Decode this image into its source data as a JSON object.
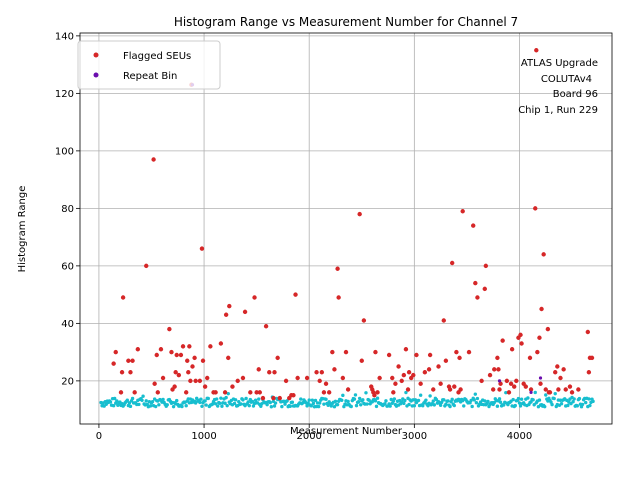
{
  "chart_data": {
    "type": "scatter",
    "title": "Histogram Range vs Measurement Number for Channel 7",
    "xlabel": "Measurement Number",
    "ylabel": "Histogram Range",
    "xlim": [
      -180,
      4880
    ],
    "ylim": [
      5,
      141
    ],
    "xticks": [
      0,
      1000,
      2000,
      3000,
      4000
    ],
    "yticks": [
      20,
      40,
      60,
      80,
      100,
      120,
      140
    ],
    "grid": true,
    "legend_position": "upper left",
    "colors": {
      "baseline": "#17becf",
      "flagged": "#d62728",
      "repeat": "#6a0dad"
    },
    "annotation": [
      "ATLAS Upgrade",
      "COLUTAv4",
      "Board 96",
      "Chip 1, Run 229"
    ],
    "series": [
      {
        "name": "Flagged SEUs",
        "points": [
          [
            140,
            26
          ],
          [
            160,
            30
          ],
          [
            210,
            16
          ],
          [
            220,
            23
          ],
          [
            230,
            49
          ],
          [
            280,
            27
          ],
          [
            300,
            23
          ],
          [
            320,
            27
          ],
          [
            340,
            16
          ],
          [
            370,
            31
          ],
          [
            450,
            60
          ],
          [
            520,
            97
          ],
          [
            530,
            19
          ],
          [
            550,
            29
          ],
          [
            560,
            16
          ],
          [
            590,
            31
          ],
          [
            610,
            21
          ],
          [
            670,
            38
          ],
          [
            690,
            30
          ],
          [
            700,
            17
          ],
          [
            720,
            18
          ],
          [
            730,
            23
          ],
          [
            740,
            29
          ],
          [
            760,
            22
          ],
          [
            780,
            29
          ],
          [
            800,
            32
          ],
          [
            830,
            16
          ],
          [
            840,
            27
          ],
          [
            850,
            23
          ],
          [
            860,
            32
          ],
          [
            870,
            20
          ],
          [
            880,
            123
          ],
          [
            890,
            25
          ],
          [
            910,
            28
          ],
          [
            920,
            20
          ],
          [
            960,
            20
          ],
          [
            980,
            66
          ],
          [
            990,
            27
          ],
          [
            1010,
            18
          ],
          [
            1030,
            21
          ],
          [
            1060,
            32
          ],
          [
            1090,
            16
          ],
          [
            1110,
            16
          ],
          [
            1160,
            33
          ],
          [
            1200,
            16
          ],
          [
            1210,
            43
          ],
          [
            1230,
            28
          ],
          [
            1240,
            46
          ],
          [
            1270,
            18
          ],
          [
            1320,
            20
          ],
          [
            1370,
            21
          ],
          [
            1390,
            44
          ],
          [
            1440,
            16
          ],
          [
            1480,
            49
          ],
          [
            1500,
            16
          ],
          [
            1520,
            24
          ],
          [
            1530,
            16
          ],
          [
            1560,
            14
          ],
          [
            1590,
            39
          ],
          [
            1620,
            23
          ],
          [
            1660,
            14
          ],
          [
            1670,
            23
          ],
          [
            1700,
            28
          ],
          [
            1720,
            14
          ],
          [
            1780,
            20
          ],
          [
            1810,
            14
          ],
          [
            1830,
            15
          ],
          [
            1850,
            15
          ],
          [
            1870,
            50
          ],
          [
            1890,
            21
          ],
          [
            1980,
            21
          ],
          [
            2070,
            23
          ],
          [
            2100,
            20
          ],
          [
            2120,
            23
          ],
          [
            2140,
            16
          ],
          [
            2160,
            19
          ],
          [
            2190,
            16
          ],
          [
            2220,
            30
          ],
          [
            2240,
            24
          ],
          [
            2270,
            59
          ],
          [
            2280,
            49
          ],
          [
            2320,
            21
          ],
          [
            2350,
            30
          ],
          [
            2370,
            17
          ],
          [
            2480,
            78
          ],
          [
            2500,
            27
          ],
          [
            2520,
            41
          ],
          [
            2590,
            18
          ],
          [
            2600,
            17
          ],
          [
            2610,
            16
          ],
          [
            2620,
            15
          ],
          [
            2630,
            30
          ],
          [
            2650,
            16
          ],
          [
            2670,
            21
          ],
          [
            2760,
            29
          ],
          [
            2790,
            21
          ],
          [
            2800,
            16
          ],
          [
            2820,
            19
          ],
          [
            2850,
            25
          ],
          [
            2880,
            20
          ],
          [
            2900,
            22
          ],
          [
            2920,
            31
          ],
          [
            2940,
            17
          ],
          [
            2950,
            23
          ],
          [
            2970,
            21
          ],
          [
            2990,
            22
          ],
          [
            3020,
            29
          ],
          [
            3060,
            19
          ],
          [
            3100,
            23
          ],
          [
            3140,
            24
          ],
          [
            3150,
            29
          ],
          [
            3180,
            17
          ],
          [
            3230,
            25
          ],
          [
            3250,
            19
          ],
          [
            3280,
            41
          ],
          [
            3300,
            27
          ],
          [
            3330,
            18
          ],
          [
            3340,
            17
          ],
          [
            3360,
            61
          ],
          [
            3380,
            18
          ],
          [
            3400,
            30
          ],
          [
            3420,
            16
          ],
          [
            3430,
            28
          ],
          [
            3440,
            17
          ],
          [
            3460,
            79
          ],
          [
            3520,
            30
          ],
          [
            3560,
            74
          ],
          [
            3580,
            54
          ],
          [
            3600,
            49
          ],
          [
            3640,
            20
          ],
          [
            3670,
            52
          ],
          [
            3680,
            60
          ],
          [
            3720,
            22
          ],
          [
            3750,
            17
          ],
          [
            3760,
            24
          ],
          [
            3790,
            28
          ],
          [
            3800,
            24
          ],
          [
            3810,
            17
          ],
          [
            3820,
            19
          ],
          [
            3840,
            34
          ],
          [
            3880,
            20
          ],
          [
            3900,
            16
          ],
          [
            3920,
            19
          ],
          [
            3930,
            31
          ],
          [
            3950,
            18
          ],
          [
            3970,
            20
          ],
          [
            3990,
            35
          ],
          [
            4010,
            36
          ],
          [
            4020,
            33
          ],
          [
            4040,
            19
          ],
          [
            4060,
            18
          ],
          [
            4100,
            28
          ],
          [
            4110,
            17
          ],
          [
            4150,
            80
          ],
          [
            4160,
            135
          ],
          [
            4170,
            30
          ],
          [
            4190,
            35
          ],
          [
            4200,
            19
          ],
          [
            4210,
            45
          ],
          [
            4230,
            64
          ],
          [
            4250,
            17
          ],
          [
            4270,
            38
          ],
          [
            4280,
            16
          ],
          [
            4290,
            16
          ],
          [
            4340,
            23
          ],
          [
            4360,
            25
          ],
          [
            4370,
            17
          ],
          [
            4390,
            21
          ],
          [
            4420,
            24
          ],
          [
            4440,
            17
          ],
          [
            4480,
            18
          ],
          [
            4500,
            16
          ],
          [
            4560,
            17
          ],
          [
            4650,
            37
          ],
          [
            4660,
            23
          ],
          [
            4670,
            28
          ],
          [
            4690,
            28
          ]
        ]
      },
      {
        "name": "Repeat Bin",
        "points": [
          [
            890,
            123
          ],
          [
            3810,
            20
          ],
          [
            4200,
            21
          ],
          [
            4110,
            16
          ]
        ]
      }
    ]
  }
}
